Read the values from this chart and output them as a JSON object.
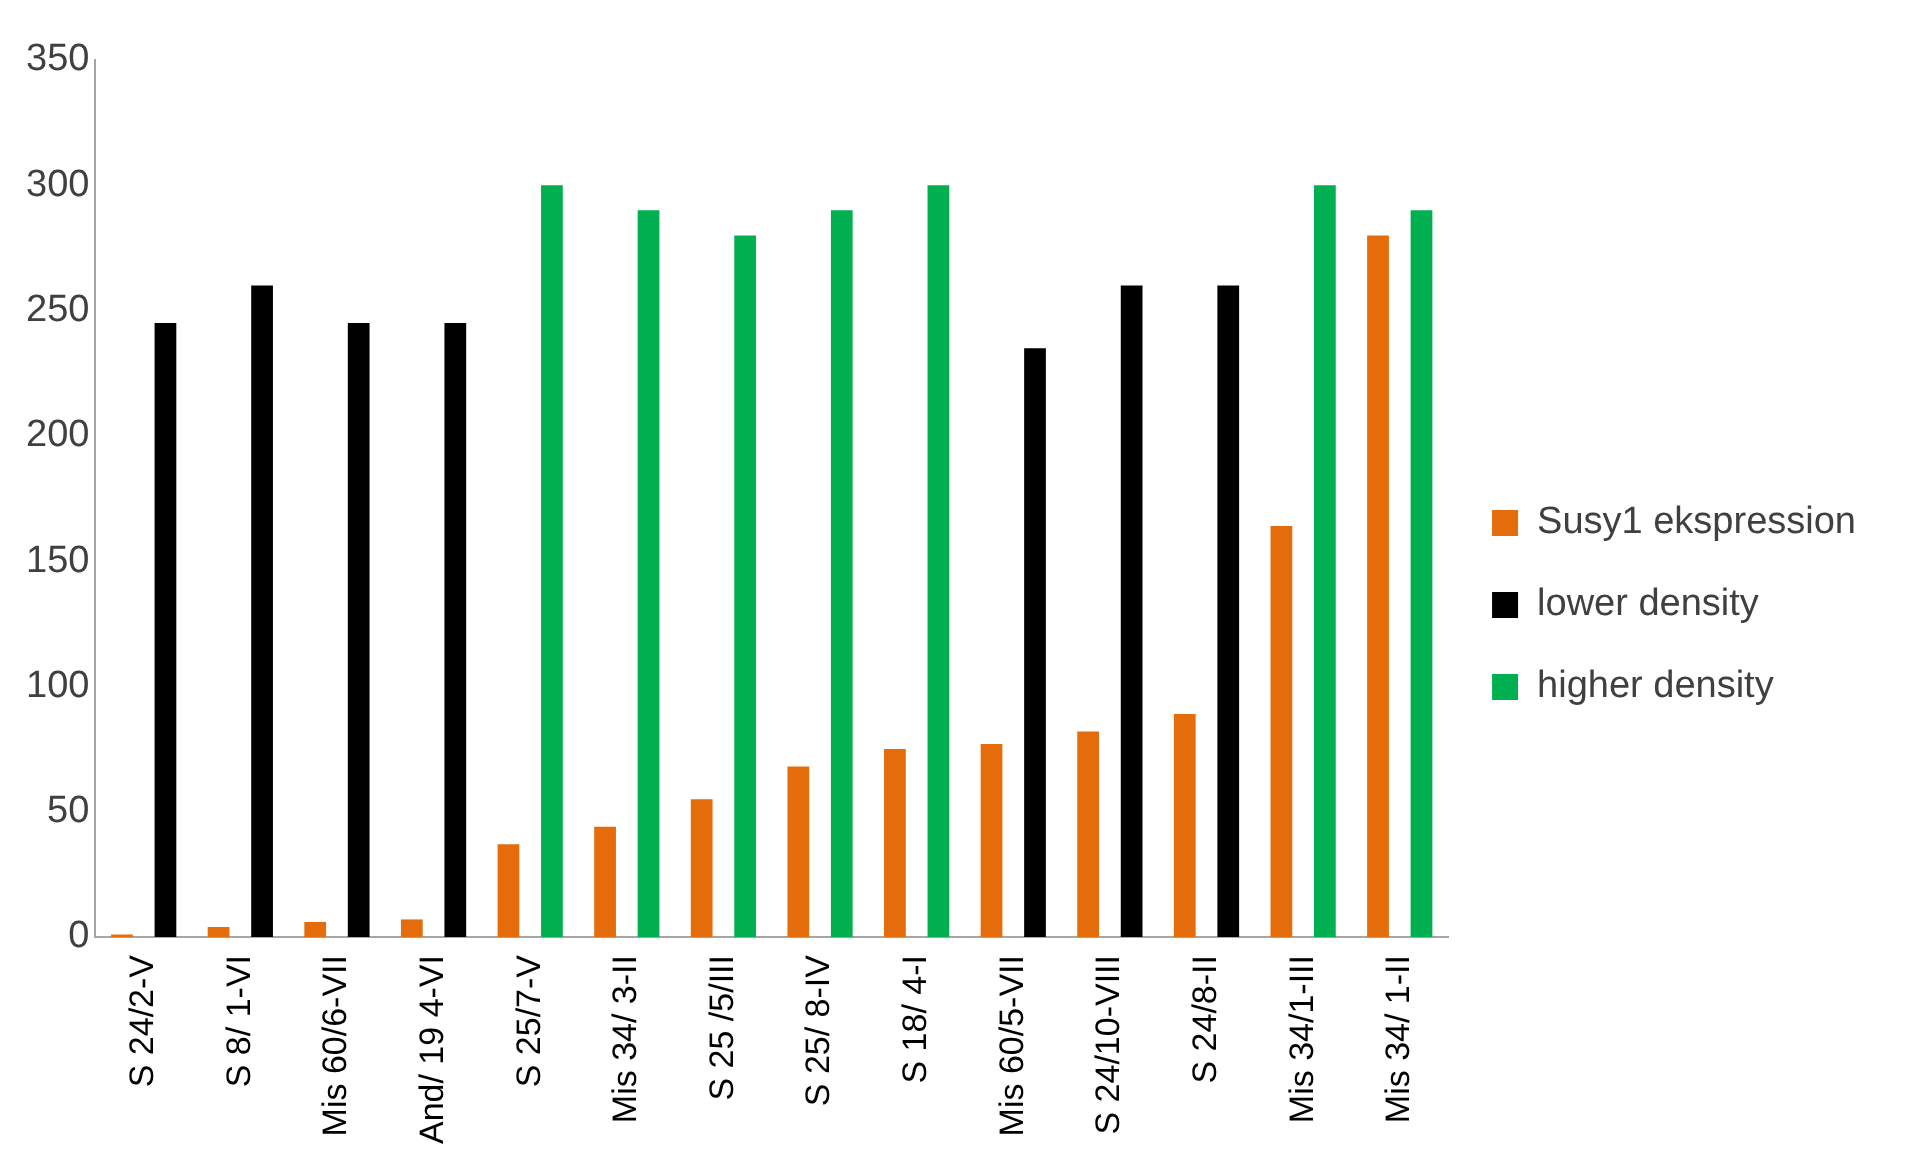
{
  "chart_data": {
    "type": "bar",
    "categories": [
      "S 24/2-V",
      "S 8/ 1-VI",
      "Mis 60/6-VII",
      "And/ 19 4-VI",
      "S 25/7-V",
      "Mis 34/ 3-II",
      "S 25 /5/III",
      "S 25/ 8-IV",
      "S 18/ 4-I",
      "Mis 60/5-VII",
      "S 24/10-VIII",
      "S 24/8-II",
      "Mis 34/1-III",
      "Mis 34/ 1-II"
    ],
    "series": [
      {
        "name": "Susy1 ekspression",
        "color": "#e46c0a",
        "values": [
          1,
          4,
          6,
          7,
          37,
          44,
          55,
          68,
          75,
          77,
          82,
          89,
          164,
          280
        ]
      },
      {
        "name": "lower density",
        "color": "#000000",
        "values": [
          245,
          260,
          245,
          245,
          null,
          null,
          null,
          null,
          null,
          235,
          260,
          260,
          null,
          null
        ]
      },
      {
        "name": "higher density",
        "color": "#00b050",
        "values": [
          null,
          null,
          null,
          null,
          300,
          290,
          280,
          290,
          300,
          null,
          null,
          null,
          300,
          290
        ]
      }
    ],
    "ylim": [
      0,
      350
    ],
    "yticks": [
      0,
      50,
      100,
      150,
      200,
      250,
      300,
      350
    ],
    "grid": false,
    "legend": "right"
  }
}
